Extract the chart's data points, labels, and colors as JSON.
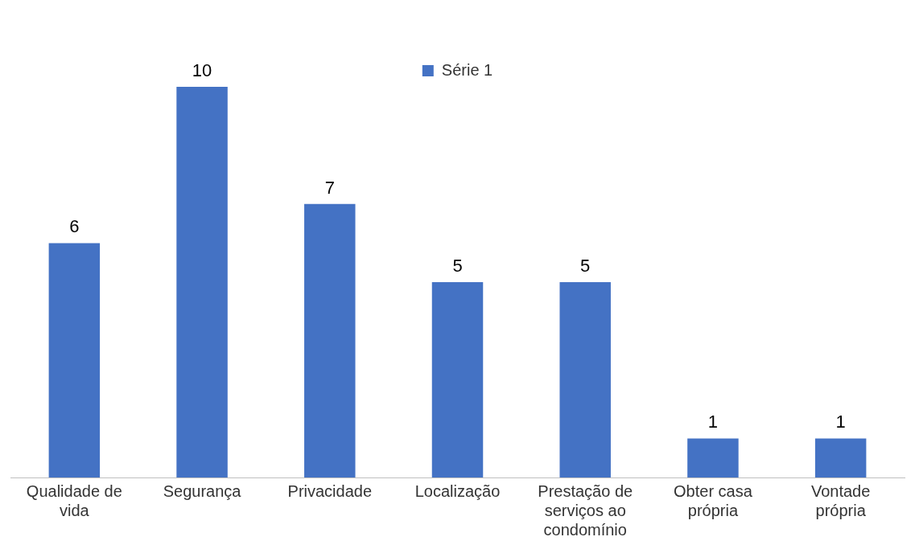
{
  "chart_data": {
    "type": "bar",
    "categories": [
      "Qualidade de vida",
      "Segurança",
      "Privacidade",
      "Localização",
      "Prestação de serviços ao condomínio",
      "Obter casa própria",
      "Vontade própria"
    ],
    "series": [
      {
        "name": "Série 1",
        "color": "#4472c4",
        "values": [
          6,
          10,
          7,
          5,
          5,
          1,
          1
        ]
      }
    ],
    "data_labels": true,
    "legend": "top",
    "grid": false,
    "tick_labels": "x"
  }
}
